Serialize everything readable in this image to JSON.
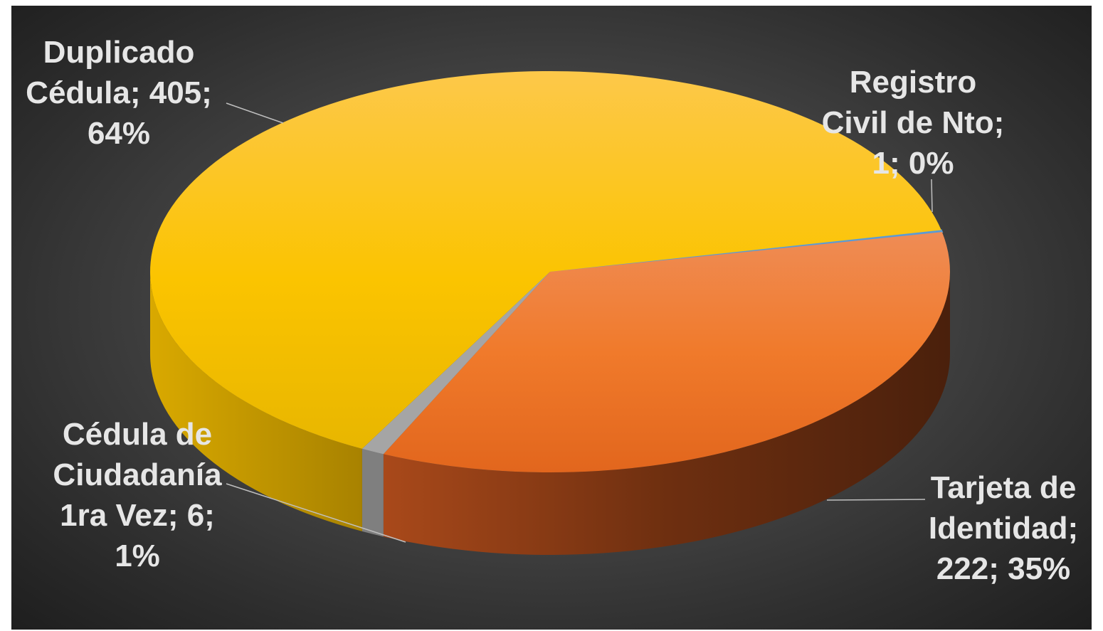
{
  "chart_data": {
    "type": "pie",
    "style": "3d",
    "background_color": "#3f3f3f",
    "slices": [
      {
        "label": "Registro Civil de Nto",
        "value": 1,
        "percent": "0%",
        "color": "#5b9bd5",
        "label_lines": [
          "Registro",
          "Civil de Nto;",
          "1; 0%"
        ]
      },
      {
        "label": "Tarjeta de Identidad",
        "value": 222,
        "percent": "35%",
        "color": "#ed7d31",
        "label_lines": [
          "Tarjeta de",
          "Identidad;",
          "222; 35%"
        ]
      },
      {
        "label": "Cédula de Ciudadanía 1ra Vez",
        "value": 6,
        "percent": "1%",
        "color": "#a5a5a5",
        "label_lines": [
          "Cédula de",
          "Ciudadanía",
          "1ra Vez; 6;",
          "1%"
        ]
      },
      {
        "label": "Duplicado Cédula",
        "value": 405,
        "percent": "64%",
        "color": "#ffc000",
        "label_lines": [
          "Duplicado",
          "Cédula; 405;",
          "64%"
        ]
      }
    ]
  }
}
